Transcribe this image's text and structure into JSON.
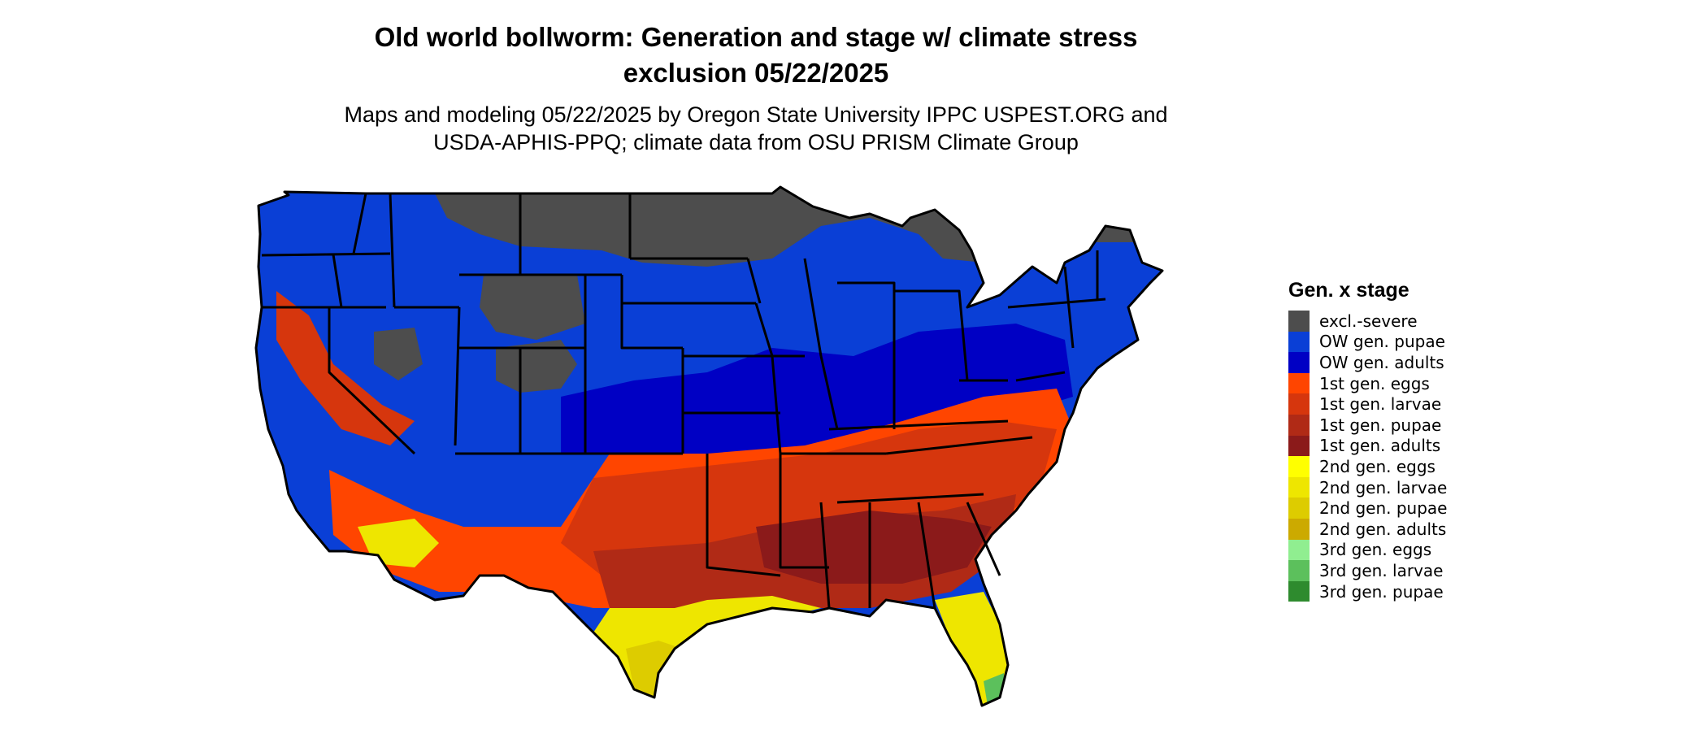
{
  "title_line1": "Old world bollworm: Generation and stage w/ climate stress",
  "title_line2": "exclusion 05/22/2025",
  "subtitle_line1": "Maps and modeling 05/22/2025 by Oregon State University IPPC USPEST.ORG and",
  "subtitle_line2": "USDA-APHIS-PPQ; climate data from OSU PRISM Climate Group",
  "legend": {
    "title": "Gen. x stage",
    "items": [
      {
        "label": "excl.-severe",
        "color": "#4d4d4d"
      },
      {
        "label": "OW gen. pupae",
        "color": "#0a3fd6"
      },
      {
        "label": "OW gen. adults",
        "color": "#0000c4"
      },
      {
        "label": "1st gen. eggs",
        "color": "#ff4500"
      },
      {
        "label": "1st gen. larvae",
        "color": "#d6360d"
      },
      {
        "label": "1st gen. pupae",
        "color": "#b02a16"
      },
      {
        "label": "1st gen. adults",
        "color": "#8b1a1a"
      },
      {
        "label": "2nd gen. eggs",
        "color": "#ffff00"
      },
      {
        "label": "2nd gen. larvae",
        "color": "#eee600"
      },
      {
        "label": "2nd gen. pupae",
        "color": "#ddcc00"
      },
      {
        "label": "2nd gen. adults",
        "color": "#ccaa00"
      },
      {
        "label": "3rd gen. eggs",
        "color": "#90ee90"
      },
      {
        "label": "3rd gen. larvae",
        "color": "#5cc05c"
      },
      {
        "label": "3rd gen. pupae",
        "color": "#2e8b2e"
      }
    ]
  },
  "map": {
    "region": "contiguous-united-states",
    "outline_color": "#000000"
  }
}
